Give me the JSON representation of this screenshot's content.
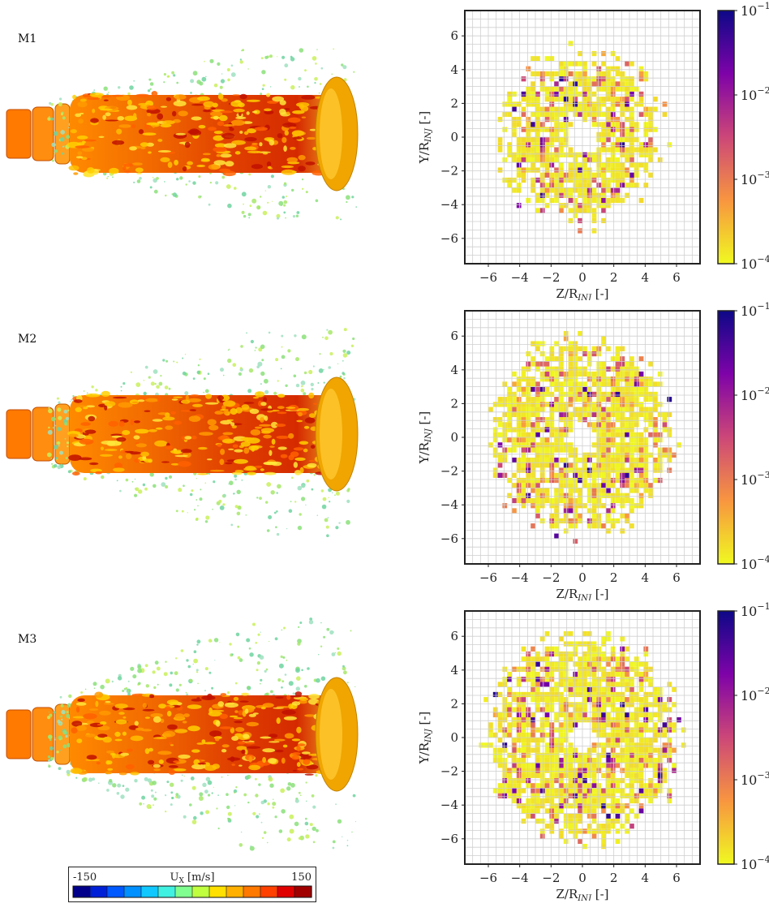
{
  "figure": {
    "panels": [
      {
        "label": "M1",
        "spread": 0.55
      },
      {
        "label": "M2",
        "spread": 0.75
      },
      {
        "label": "M3",
        "spread": 0.85
      }
    ],
    "velocity_legend": {
      "min_label": "-150",
      "max_label": "150",
      "title": "U",
      "title_sub": "X",
      "title_unit": " [m/s]",
      "colors": [
        "#00008a",
        "#0020d8",
        "#0058ff",
        "#0090ff",
        "#10c8ff",
        "#40f0e0",
        "#80ff90",
        "#c0ff40",
        "#ffe000",
        "#ffb000",
        "#ff7800",
        "#ff4000",
        "#e00000",
        "#a00000"
      ]
    }
  },
  "chart_data": [
    {
      "type": "heatmap",
      "panel": "M1",
      "xlabel": "Z/R",
      "xlabel_sub": "INJ",
      "xlabel_unit": " [-]",
      "ylabel": "Y/R",
      "ylabel_sub": "INJ",
      "ylabel_unit": " [-]",
      "xlim": [
        -7.5,
        7.5
      ],
      "ylim": [
        -7.5,
        7.5
      ],
      "xticks": [
        -6,
        -4,
        -2,
        0,
        2,
        4,
        6
      ],
      "yticks": [
        -6,
        -4,
        -2,
        0,
        2,
        4,
        6
      ],
      "grid": true,
      "colorbar": {
        "scale": "log",
        "vmin": 0.0001,
        "vmax": 0.1,
        "ticks": [
          "10",
          "10",
          "10",
          "10"
        ],
        "exponents": [
          "-1",
          "-2",
          "-3",
          "-4"
        ],
        "tick_values": [
          0.1,
          0.01,
          0.001,
          0.0001
        ],
        "colormap": "plasma_r"
      },
      "distribution": {
        "inner_radius": 0.9,
        "outer_radius": 4.6,
        "max_radius": 6.0,
        "seed": 11
      }
    },
    {
      "type": "heatmap",
      "panel": "M2",
      "xlabel": "Z/R",
      "xlabel_sub": "INJ",
      "xlabel_unit": " [-]",
      "ylabel": "Y/R",
      "ylabel_sub": "INJ",
      "ylabel_unit": " [-]",
      "xlim": [
        -7.5,
        7.5
      ],
      "ylim": [
        -7.5,
        7.5
      ],
      "xticks": [
        -6,
        -4,
        -2,
        0,
        2,
        4,
        6
      ],
      "yticks": [
        -6,
        -4,
        -2,
        0,
        2,
        4,
        6
      ],
      "grid": true,
      "colorbar": {
        "scale": "log",
        "vmin": 0.0001,
        "vmax": 0.1,
        "ticks": [
          "10",
          "10",
          "10",
          "10"
        ],
        "exponents": [
          "-1",
          "-2",
          "-3",
          "-4"
        ],
        "tick_values": [
          0.1,
          0.01,
          0.001,
          0.0001
        ],
        "colormap": "plasma_r"
      },
      "distribution": {
        "inner_radius": 0.8,
        "outer_radius": 5.4,
        "max_radius": 6.4,
        "seed": 23
      }
    },
    {
      "type": "heatmap",
      "panel": "M3",
      "xlabel": "Z/R",
      "xlabel_sub": "INJ",
      "xlabel_unit": " [-]",
      "ylabel": "Y/R",
      "ylabel_sub": "INJ",
      "ylabel_unit": " [-]",
      "xlim": [
        -7.5,
        7.5
      ],
      "ylim": [
        -7.5,
        7.5
      ],
      "xticks": [
        -6,
        -4,
        -2,
        0,
        2,
        4,
        6
      ],
      "yticks": [
        -6,
        -4,
        -2,
        0,
        2,
        4,
        6
      ],
      "grid": true,
      "colorbar": {
        "scale": "log",
        "vmin": 0.0001,
        "vmax": 0.1,
        "ticks": [
          "10",
          "10",
          "10",
          "10"
        ],
        "exponents": [
          "-1",
          "-2",
          "-3",
          "-4"
        ],
        "tick_values": [
          0.1,
          0.01,
          0.001,
          0.0001
        ],
        "colormap": "plasma_r"
      },
      "distribution": {
        "inner_radius": 0.8,
        "outer_radius": 5.8,
        "max_radius": 6.8,
        "seed": 37
      }
    }
  ]
}
